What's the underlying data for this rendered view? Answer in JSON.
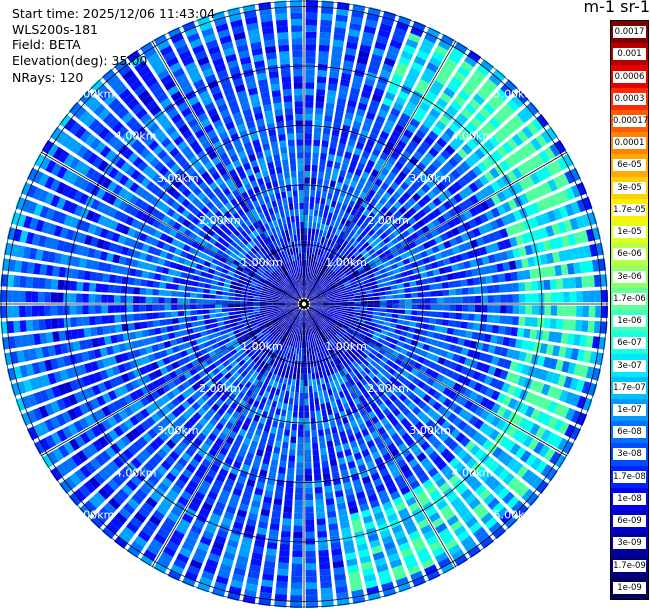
{
  "info": {
    "start_time": "Start time: 2025/12/06 11:43:04",
    "device": "WLS200s-181",
    "field": "Field: BETA",
    "elevation": "Elevation(deg): 35.00",
    "nrays": "NRays: 120"
  },
  "unit_label": "m-1 sr-1",
  "range_labels": [
    "1.00km",
    "2.00km",
    "3.00km",
    "4.00km",
    "5.00km"
  ],
  "colorbar": {
    "labels": [
      "0.0017",
      "0.001",
      "0.0006",
      "0.0003",
      "0.00017",
      "0.0001",
      "6e-05",
      "3e-05",
      "1.7e-05",
      "1e-05",
      "6e-06",
      "3e-06",
      "1.7e-06",
      "1e-06",
      "6e-07",
      "3e-07",
      "1.7e-07",
      "1e-07",
      "6e-08",
      "3e-08",
      "1.7e-08",
      "1e-08",
      "6e-09",
      "3e-09",
      "1.7e-09",
      "1e-09"
    ],
    "colors": [
      "#7f0000",
      "#b40000",
      "#e60000",
      "#ff2a00",
      "#ff5a00",
      "#ff8200",
      "#ffaa00",
      "#ffd000",
      "#fff000",
      "#e0ff1a",
      "#b5ff45",
      "#8cff6e",
      "#64ff96",
      "#3dffbd",
      "#1affe0",
      "#00e8ff",
      "#00c0ff",
      "#009aff",
      "#0072ff",
      "#004cff",
      "#0024ff",
      "#0000ee",
      "#0000c8",
      "#0000a4",
      "#000080",
      "#000060"
    ]
  }
}
